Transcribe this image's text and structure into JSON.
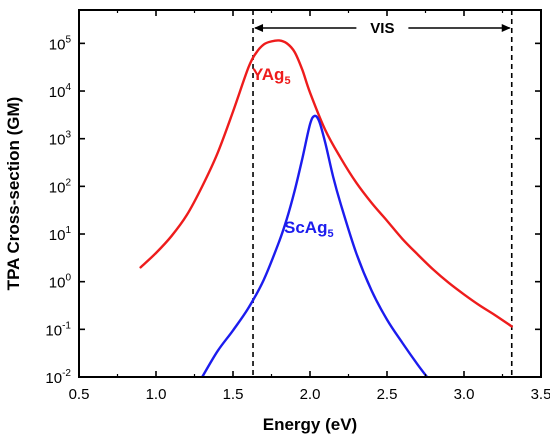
{
  "chart_data": {
    "type": "line",
    "xlabel": "Energy (eV)",
    "ylabel": "TPA Cross-section (GM)",
    "xlim": [
      0.5,
      3.5
    ],
    "ylim_log10": [
      -2,
      5.7
    ],
    "y_scale": "log",
    "xticks": [
      0.5,
      1.0,
      1.5,
      2.0,
      2.5,
      3.0,
      3.5
    ],
    "xtick_labels": [
      "0.5",
      "1.0",
      "1.5",
      "2.0",
      "2.5",
      "3.0",
      "3.5"
    ],
    "yticks": [
      0.01,
      0.1,
      1,
      10,
      100,
      1000,
      10000,
      100000
    ],
    "ytick_labels": [
      {
        "base": "10",
        "exp": "-2"
      },
      {
        "base": "10",
        "exp": "-1"
      },
      {
        "base": "10",
        "exp": "0"
      },
      {
        "base": "10",
        "exp": "1"
      },
      {
        "base": "10",
        "exp": "2"
      },
      {
        "base": "10",
        "exp": "3"
      },
      {
        "base": "10",
        "exp": "4"
      },
      {
        "base": "10",
        "exp": "5"
      }
    ],
    "series": [
      {
        "name": "YAg",
        "name_sub": "5",
        "color": "#ee1c1c",
        "x": [
          0.9,
          1.0,
          1.1,
          1.2,
          1.3,
          1.4,
          1.5,
          1.6,
          1.65,
          1.7,
          1.75,
          1.8,
          1.85,
          1.9,
          1.95,
          2.0,
          2.1,
          2.2,
          2.3,
          2.4,
          2.5,
          2.6,
          2.7,
          2.8,
          2.9,
          3.0,
          3.1,
          3.2,
          3.31
        ],
        "y": [
          2,
          4,
          9,
          25,
          100,
          500,
          3700,
          31000,
          63000,
          95000,
          110000,
          115000,
          100000,
          66000,
          28000,
          9300,
          1500,
          390,
          120,
          45,
          19,
          7.9,
          3.7,
          1.8,
          0.95,
          0.54,
          0.32,
          0.2,
          0.115
        ]
      },
      {
        "name": "ScAg",
        "name_sub": "5",
        "color": "#1c1cee",
        "x": [
          1.3,
          1.4,
          1.5,
          1.6,
          1.7,
          1.8,
          1.85,
          1.9,
          1.95,
          2.0,
          2.03,
          2.06,
          2.1,
          2.15,
          2.2,
          2.3,
          2.4,
          2.5,
          2.6,
          2.7,
          2.76
        ],
        "y": [
          0.01,
          0.035,
          0.095,
          0.28,
          1.1,
          7,
          21,
          80,
          380,
          2000,
          3000,
          2300,
          800,
          160,
          42,
          4,
          0.65,
          0.16,
          0.052,
          0.018,
          0.01
        ]
      }
    ],
    "annotation": {
      "text": "VIS",
      "x_start": 1.63,
      "x_end": 3.31
    }
  }
}
